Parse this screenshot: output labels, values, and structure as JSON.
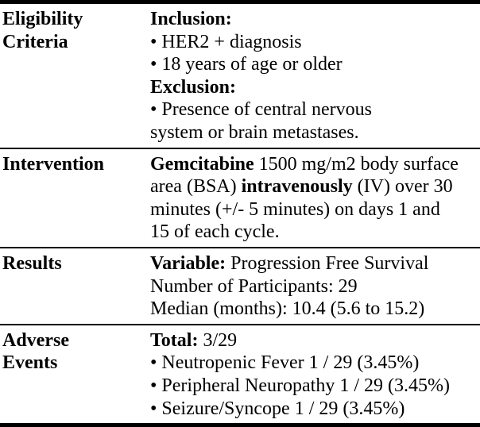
{
  "colors": {
    "text": "#000000",
    "background": "#ffffff",
    "rule": "#000000"
  },
  "table": {
    "rows": [
      {
        "label": "Eligibility Criteria",
        "label_lines": [
          "Eligibility",
          "Criteria"
        ],
        "lines": [
          {
            "segments": [
              {
                "text": "Inclusion:",
                "bold": true
              }
            ]
          },
          {
            "segments": [
              {
                "text": "• HER2 + diagnosis",
                "bold": false
              }
            ]
          },
          {
            "segments": [
              {
                "text": "• 18 years of age or older",
                "bold": false
              }
            ]
          },
          {
            "segments": [
              {
                "text": "Exclusion:",
                "bold": true
              }
            ]
          },
          {
            "segments": [
              {
                "text": "• Presence of central nervous",
                "bold": false
              }
            ]
          },
          {
            "segments": [
              {
                "text": "system or brain metastases.",
                "bold": false
              }
            ]
          }
        ]
      },
      {
        "label": "Intervention",
        "label_lines": [
          "Intervention"
        ],
        "lines": [
          {
            "segments": [
              {
                "text": "Gemcitabine",
                "bold": true
              },
              {
                "text": " 1500 mg/m2 body surface",
                "bold": false
              }
            ]
          },
          {
            "segments": [
              {
                "text": "area (BSA) ",
                "bold": false
              },
              {
                "text": "intravenously",
                "bold": true
              },
              {
                "text": " (IV) over 30",
                "bold": false
              }
            ]
          },
          {
            "segments": [
              {
                "text": "minutes (+/- 5 minutes) on days 1 and",
                "bold": false
              }
            ]
          },
          {
            "segments": [
              {
                "text": "15 of each cycle.",
                "bold": false
              }
            ]
          }
        ]
      },
      {
        "label": "Results",
        "label_lines": [
          "Results"
        ],
        "lines": [
          {
            "segments": [
              {
                "text": "Variable:",
                "bold": true
              },
              {
                "text": " Progression Free Survival",
                "bold": false
              }
            ]
          },
          {
            "segments": [
              {
                "text": "Number of Participants: 29",
                "bold": false
              }
            ]
          },
          {
            "segments": [
              {
                "text": "Median (months): 10.4 (5.6 to 15.2)",
                "bold": false
              }
            ]
          }
        ]
      },
      {
        "label": "Adverse Events",
        "label_lines": [
          "Adverse",
          "Events"
        ],
        "lines": [
          {
            "segments": [
              {
                "text": "Total:",
                "bold": true
              },
              {
                "text": " 3/29",
                "bold": false
              }
            ]
          },
          {
            "segments": [
              {
                "text": "• Neutropenic Fever 1 / 29 (3.45%)",
                "bold": false
              }
            ]
          },
          {
            "segments": [
              {
                "text": "• Peripheral Neuropathy 1 / 29 (3.45%)",
                "bold": false
              }
            ]
          },
          {
            "segments": [
              {
                "text": "• Seizure/Syncope 1 / 29 (3.45%)",
                "bold": false
              }
            ]
          }
        ]
      }
    ]
  }
}
